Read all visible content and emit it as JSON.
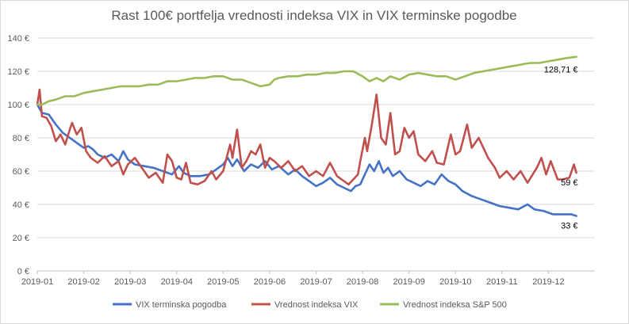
{
  "chart_data": {
    "type": "line",
    "title": "Rast 100€ portfelja vrednosti indeksa VIX in VIX terminske pogodbe",
    "xlabel": "",
    "ylabel": "",
    "ylim": [
      0,
      140
    ],
    "y_ticks": [
      "0 €",
      "20 €",
      "40 €",
      "60 €",
      "80 €",
      "100 €",
      "120 €",
      "140 €"
    ],
    "x_ticks": [
      "2019-01",
      "2019-02",
      "2019-03",
      "2019-04",
      "2019-05",
      "2019-06",
      "2019-07",
      "2019-08",
      "2019-09",
      "2019-10",
      "2019-11",
      "2019-12"
    ],
    "grid": true,
    "legend": "bottom",
    "series": [
      {
        "name": "VIX terminska pogodba",
        "color": "#4472C4",
        "end_label": "33 €",
        "points": [
          [
            0.0,
            100
          ],
          [
            0.1,
            95
          ],
          [
            0.25,
            94
          ],
          [
            0.4,
            88
          ],
          [
            0.55,
            83
          ],
          [
            0.7,
            80
          ],
          [
            0.8,
            78
          ],
          [
            0.9,
            76
          ],
          [
            1.0,
            74
          ],
          [
            1.1,
            75
          ],
          [
            1.2,
            73
          ],
          [
            1.3,
            70
          ],
          [
            1.45,
            68
          ],
          [
            1.6,
            70
          ],
          [
            1.75,
            66
          ],
          [
            1.85,
            72
          ],
          [
            1.95,
            67
          ],
          [
            2.1,
            64
          ],
          [
            2.3,
            63
          ],
          [
            2.5,
            62
          ],
          [
            2.7,
            60
          ],
          [
            2.9,
            58
          ],
          [
            3.05,
            63
          ],
          [
            3.15,
            59
          ],
          [
            3.3,
            57
          ],
          [
            3.5,
            57
          ],
          [
            3.7,
            58
          ],
          [
            3.85,
            61
          ],
          [
            4.0,
            64
          ],
          [
            4.1,
            68
          ],
          [
            4.2,
            63
          ],
          [
            4.3,
            67
          ],
          [
            4.45,
            60
          ],
          [
            4.6,
            64
          ],
          [
            4.75,
            62
          ],
          [
            4.9,
            66
          ],
          [
            5.05,
            61
          ],
          [
            5.2,
            63
          ],
          [
            5.4,
            58
          ],
          [
            5.55,
            61
          ],
          [
            5.7,
            57
          ],
          [
            5.85,
            54
          ],
          [
            6.0,
            51
          ],
          [
            6.15,
            53
          ],
          [
            6.3,
            56
          ],
          [
            6.45,
            52
          ],
          [
            6.6,
            50
          ],
          [
            6.75,
            48
          ],
          [
            6.85,
            51
          ],
          [
            6.95,
            52
          ],
          [
            7.05,
            58
          ],
          [
            7.15,
            64
          ],
          [
            7.25,
            60
          ],
          [
            7.35,
            66
          ],
          [
            7.45,
            59
          ],
          [
            7.55,
            62
          ],
          [
            7.65,
            57
          ],
          [
            7.8,
            60
          ],
          [
            7.95,
            55
          ],
          [
            8.1,
            53
          ],
          [
            8.25,
            51
          ],
          [
            8.4,
            54
          ],
          [
            8.55,
            52
          ],
          [
            8.7,
            58
          ],
          [
            8.85,
            54
          ],
          [
            9.0,
            52
          ],
          [
            9.15,
            48
          ],
          [
            9.35,
            45
          ],
          [
            9.55,
            43
          ],
          [
            9.75,
            41
          ],
          [
            9.95,
            39
          ],
          [
            10.15,
            38
          ],
          [
            10.35,
            37
          ],
          [
            10.55,
            40
          ],
          [
            10.7,
            37
          ],
          [
            10.9,
            36
          ],
          [
            11.1,
            34
          ],
          [
            11.3,
            34
          ],
          [
            11.5,
            34
          ],
          [
            11.6,
            33
          ]
        ]
      },
      {
        "name": "Vrednost indeksa VIX",
        "color": "#C0504D",
        "end_label": "59 €",
        "points": [
          [
            0.0,
            100
          ],
          [
            0.05,
            109
          ],
          [
            0.1,
            93
          ],
          [
            0.2,
            92
          ],
          [
            0.3,
            87
          ],
          [
            0.4,
            78
          ],
          [
            0.5,
            82
          ],
          [
            0.6,
            76
          ],
          [
            0.7,
            85
          ],
          [
            0.75,
            89
          ],
          [
            0.85,
            82
          ],
          [
            0.95,
            86
          ],
          [
            1.05,
            72
          ],
          [
            1.15,
            68
          ],
          [
            1.3,
            65
          ],
          [
            1.45,
            69
          ],
          [
            1.6,
            63
          ],
          [
            1.75,
            66
          ],
          [
            1.85,
            58
          ],
          [
            1.95,
            64
          ],
          [
            2.1,
            68
          ],
          [
            2.25,
            62
          ],
          [
            2.4,
            56
          ],
          [
            2.55,
            59
          ],
          [
            2.7,
            53
          ],
          [
            2.8,
            70
          ],
          [
            2.9,
            66
          ],
          [
            3.0,
            56
          ],
          [
            3.1,
            55
          ],
          [
            3.2,
            65
          ],
          [
            3.3,
            53
          ],
          [
            3.45,
            52
          ],
          [
            3.6,
            54
          ],
          [
            3.75,
            60
          ],
          [
            3.85,
            55
          ],
          [
            4.0,
            60
          ],
          [
            4.15,
            76
          ],
          [
            4.2,
            68
          ],
          [
            4.3,
            85
          ],
          [
            4.4,
            62
          ],
          [
            4.5,
            66
          ],
          [
            4.6,
            72
          ],
          [
            4.7,
            70
          ],
          [
            4.8,
            76
          ],
          [
            4.9,
            62
          ],
          [
            5.0,
            68
          ],
          [
            5.1,
            66
          ],
          [
            5.25,
            62
          ],
          [
            5.4,
            66
          ],
          [
            5.55,
            60
          ],
          [
            5.7,
            63
          ],
          [
            5.85,
            57
          ],
          [
            6.0,
            60
          ],
          [
            6.15,
            57
          ],
          [
            6.3,
            65
          ],
          [
            6.45,
            57
          ],
          [
            6.55,
            55
          ],
          [
            6.7,
            52
          ],
          [
            6.8,
            55
          ],
          [
            6.9,
            58
          ],
          [
            6.95,
            66
          ],
          [
            7.05,
            80
          ],
          [
            7.1,
            72
          ],
          [
            7.2,
            88
          ],
          [
            7.3,
            106
          ],
          [
            7.4,
            80
          ],
          [
            7.5,
            76
          ],
          [
            7.6,
            95
          ],
          [
            7.7,
            70
          ],
          [
            7.8,
            72
          ],
          [
            7.9,
            86
          ],
          [
            8.0,
            80
          ],
          [
            8.1,
            84
          ],
          [
            8.2,
            70
          ],
          [
            8.35,
            66
          ],
          [
            8.5,
            72
          ],
          [
            8.6,
            65
          ],
          [
            8.75,
            64
          ],
          [
            8.9,
            82
          ],
          [
            9.0,
            70
          ],
          [
            9.1,
            72
          ],
          [
            9.25,
            88
          ],
          [
            9.35,
            74
          ],
          [
            9.5,
            80
          ],
          [
            9.6,
            74
          ],
          [
            9.7,
            68
          ],
          [
            9.85,
            62
          ],
          [
            9.95,
            56
          ],
          [
            10.1,
            60
          ],
          [
            10.25,
            55
          ],
          [
            10.4,
            60
          ],
          [
            10.55,
            53
          ],
          [
            10.75,
            62
          ],
          [
            10.85,
            68
          ],
          [
            10.95,
            58
          ],
          [
            11.05,
            66
          ],
          [
            11.2,
            55
          ],
          [
            11.3,
            55
          ],
          [
            11.45,
            56
          ],
          [
            11.55,
            64
          ],
          [
            11.6,
            59
          ]
        ]
      },
      {
        "name": "Vrednost indeksa S&P 500",
        "color": "#9BBB59",
        "end_label": "128,71 €",
        "points": [
          [
            0.0,
            100
          ],
          [
            0.1,
            100
          ],
          [
            0.25,
            102
          ],
          [
            0.4,
            103
          ],
          [
            0.6,
            105
          ],
          [
            0.8,
            105
          ],
          [
            1.0,
            107
          ],
          [
            1.2,
            108
          ],
          [
            1.4,
            109
          ],
          [
            1.6,
            110
          ],
          [
            1.8,
            111
          ],
          [
            2.0,
            111
          ],
          [
            2.2,
            111
          ],
          [
            2.4,
            112
          ],
          [
            2.6,
            112
          ],
          [
            2.8,
            114
          ],
          [
            3.0,
            114
          ],
          [
            3.2,
            115
          ],
          [
            3.4,
            116
          ],
          [
            3.6,
            116
          ],
          [
            3.8,
            117
          ],
          [
            4.0,
            117
          ],
          [
            4.2,
            115
          ],
          [
            4.4,
            115
          ],
          [
            4.6,
            113
          ],
          [
            4.8,
            111
          ],
          [
            5.0,
            112
          ],
          [
            5.1,
            115
          ],
          [
            5.2,
            116
          ],
          [
            5.4,
            117
          ],
          [
            5.6,
            117
          ],
          [
            5.8,
            118
          ],
          [
            6.0,
            118
          ],
          [
            6.2,
            119
          ],
          [
            6.4,
            119
          ],
          [
            6.6,
            120
          ],
          [
            6.8,
            120
          ],
          [
            7.0,
            117
          ],
          [
            7.15,
            114
          ],
          [
            7.3,
            116
          ],
          [
            7.45,
            114
          ],
          [
            7.6,
            117
          ],
          [
            7.8,
            115
          ],
          [
            8.0,
            118
          ],
          [
            8.2,
            119
          ],
          [
            8.4,
            118
          ],
          [
            8.6,
            117
          ],
          [
            8.8,
            117
          ],
          [
            9.0,
            115
          ],
          [
            9.2,
            117
          ],
          [
            9.4,
            119
          ],
          [
            9.6,
            120
          ],
          [
            9.8,
            121
          ],
          [
            10.0,
            122
          ],
          [
            10.2,
            123
          ],
          [
            10.4,
            124
          ],
          [
            10.6,
            125
          ],
          [
            10.8,
            125
          ],
          [
            11.0,
            126
          ],
          [
            11.2,
            127
          ],
          [
            11.4,
            128
          ],
          [
            11.6,
            128.71
          ]
        ]
      }
    ]
  }
}
